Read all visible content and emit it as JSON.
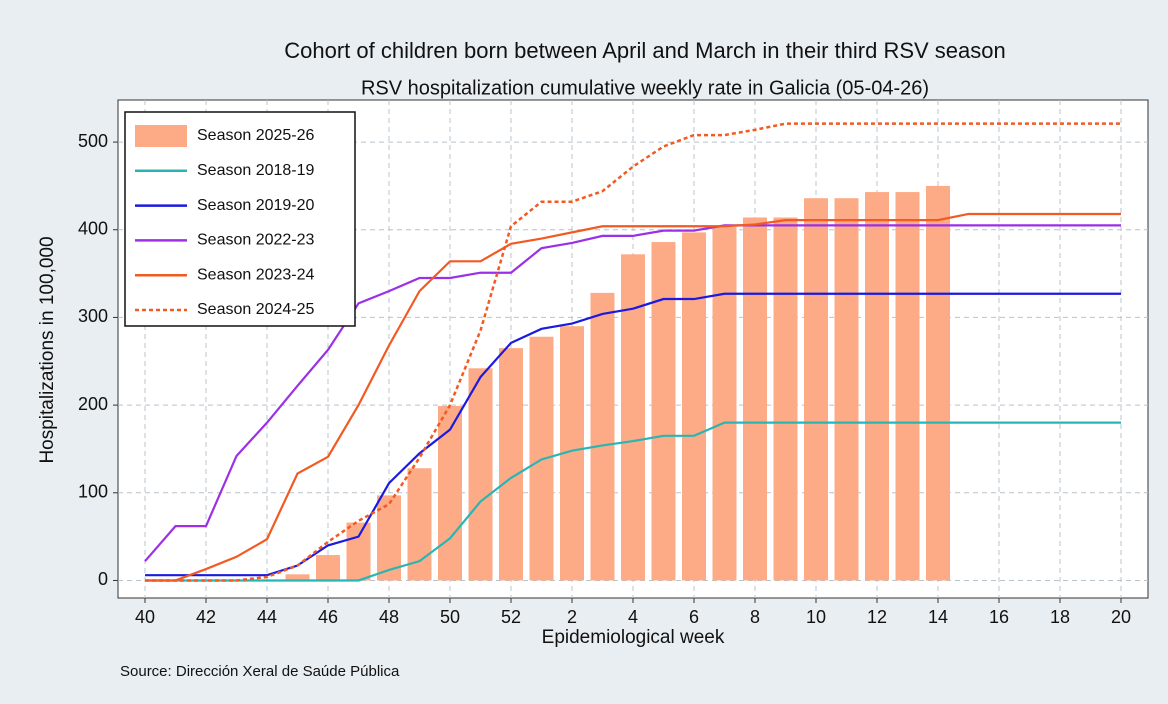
{
  "chart_data": {
    "type": "bar_line",
    "title": "Cohort of children born between April and March in their third RSV season",
    "subtitle": "RSV hospitalization cumulative weekly rate in Galicia (05-04-26)",
    "x_label": "Epidemiological week",
    "y_label": "Hospitalizations in 100,000",
    "source": "Source: Dirección Xeral de Saúde Pública",
    "categories": [
      40,
      null,
      42,
      null,
      44,
      null,
      46,
      null,
      48,
      null,
      50,
      null,
      52,
      null,
      2,
      null,
      4,
      null,
      6,
      null,
      8,
      null,
      10,
      null,
      12,
      null,
      14,
      null,
      16,
      null,
      18,
      null,
      20
    ],
    "series": [
      {
        "name": "Season 2025-26",
        "kind": "bar",
        "color": "#fcab86",
        "values": [
          0,
          0,
          0,
          0,
          0,
          7,
          29,
          66,
          97,
          128,
          199,
          242,
          265,
          278,
          290,
          328,
          372,
          386,
          397,
          403,
          414,
          414,
          436,
          436,
          443,
          443,
          450,
          null,
          null,
          null,
          null,
          null,
          null
        ]
      },
      {
        "name": "Season 2018-19",
        "kind": "line",
        "color": "#2ab5b5",
        "dash": false,
        "values": [
          0,
          0,
          0,
          0,
          0,
          0,
          0,
          0,
          12,
          22,
          48,
          90,
          117,
          138,
          148,
          154,
          159,
          165,
          165,
          180,
          180,
          180,
          180,
          180,
          180,
          180,
          180,
          180,
          180,
          180,
          180,
          180,
          180
        ]
      },
      {
        "name": "Season 2019-20",
        "kind": "line",
        "color": "#1a1ae0",
        "dash": false,
        "values": [
          6,
          6,
          6,
          6,
          6,
          17,
          40,
          50,
          111,
          145,
          172,
          232,
          271,
          287,
          293,
          304,
          310,
          321,
          321,
          327,
          327,
          327,
          327,
          327,
          327,
          327,
          327,
          327,
          327,
          327,
          327,
          327,
          327
        ]
      },
      {
        "name": "Season 2022-23",
        "kind": "line",
        "color": "#9b30e6",
        "dash": false,
        "values": [
          22,
          62,
          62,
          142,
          180,
          222,
          263,
          316,
          330,
          345,
          345,
          351,
          351,
          379,
          385,
          393,
          393,
          399,
          399,
          405,
          405,
          405,
          405,
          405,
          405,
          405,
          405,
          405,
          405,
          405,
          405,
          405,
          405
        ]
      },
      {
        "name": "Season 2023-24",
        "kind": "line",
        "color": "#f25a22",
        "dash": false,
        "values": [
          0,
          0,
          13,
          27,
          47,
          122,
          141,
          200,
          268,
          330,
          364,
          364,
          384,
          390,
          397,
          404,
          404,
          404,
          404,
          404,
          406,
          411,
          411,
          411,
          411,
          411,
          411,
          418,
          418,
          418,
          418,
          418,
          418
        ]
      },
      {
        "name": "Season 2024-25",
        "kind": "line",
        "color": "#f25a22",
        "dash": true,
        "values": [
          0,
          0,
          0,
          0,
          4,
          17,
          44,
          68,
          87,
          140,
          200,
          285,
          404,
          432,
          432,
          444,
          472,
          495,
          508,
          508,
          514,
          521,
          521,
          521,
          521,
          521,
          521,
          521,
          521,
          521,
          521,
          521,
          521
        ]
      }
    ],
    "ylim": [
      -20,
      548
    ],
    "yticks": [
      0,
      100,
      200,
      300,
      400,
      500
    ],
    "grid": true,
    "legend": "top-left"
  }
}
